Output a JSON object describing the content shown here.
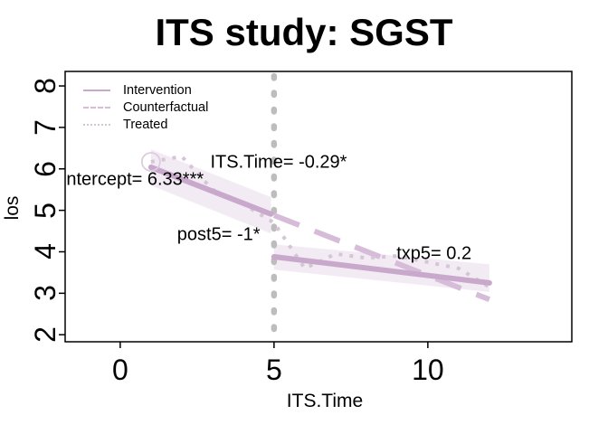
{
  "title": "ITS study: SGST",
  "legend": {
    "items": [
      {
        "label": "Intervention",
        "style": "solid",
        "series": "intervention"
      },
      {
        "label": "Counterfactual",
        "style": "dashed",
        "series": "counterfactual"
      },
      {
        "label": "Treated",
        "style": "dotted",
        "series": "treated"
      }
    ]
  },
  "colors": {
    "intervention": "#C9A9CB",
    "counterfactual": "#D7BCD9",
    "treated": "#D5C6D7",
    "band": "#F3EBF4",
    "intervention_line": "#BDBDBD",
    "start_marker": "#DCCCDE",
    "axis": "#000000"
  },
  "chart_data": {
    "type": "line",
    "title": "ITS study: SGST",
    "xlabel": "ITS.Time",
    "ylabel": "los",
    "xlim": [
      -1.79,
      14.68
    ],
    "ylim": [
      1.83,
      8.35
    ],
    "x_ticks": [
      0,
      5,
      10
    ],
    "y_ticks": [
      2,
      3,
      4,
      5,
      6,
      7,
      8
    ],
    "grid": false,
    "legend_position": "top-left",
    "intervention_x": 5,
    "series": [
      {
        "id": "intervention-pre",
        "name": "Intervention (pre-period fit)",
        "style": "solid",
        "x": [
          1,
          4.9
        ],
        "y": [
          6.04,
          4.91
        ]
      },
      {
        "id": "intervention-post",
        "name": "Intervention (post-period fit)",
        "style": "solid",
        "x": [
          5,
          12
        ],
        "y": [
          3.88,
          3.25
        ]
      },
      {
        "id": "counterfactual",
        "name": "Counterfactual",
        "style": "dashed",
        "x": [
          5,
          12
        ],
        "y": [
          4.88,
          2.85
        ]
      },
      {
        "id": "treated",
        "name": "Treated (observed)",
        "style": "dotted",
        "x": [
          1,
          2,
          3,
          4,
          5,
          6,
          7,
          8,
          9,
          10,
          11,
          12
        ],
        "y": [
          6.17,
          6.3,
          5.5,
          5.15,
          4.7,
          3.6,
          3.95,
          3.85,
          3.9,
          3.75,
          3.6,
          3.15
        ]
      }
    ],
    "bands": [
      {
        "id": "band-pre",
        "x": [
          1,
          4.9
        ],
        "upper": [
          6.47,
          5.32
        ],
        "lower": [
          5.6,
          4.44
        ]
      },
      {
        "id": "band-post",
        "x": [
          5,
          12
        ],
        "upper": [
          4.18,
          3.7
        ],
        "lower": [
          3.57,
          3.03
        ]
      }
    ],
    "start_marker": {
      "x": 1,
      "y": 6.17
    },
    "annotations": [
      {
        "text": "ntercept= 6.33***",
        "x": -1.75,
        "y": 5.73,
        "align": "left"
      },
      {
        "text": "ITS.Time= -0.29*",
        "x": 5.15,
        "y": 6.15,
        "align": "center"
      },
      {
        "text": "post5= -1*",
        "x": 3.2,
        "y": 4.4,
        "align": "center"
      },
      {
        "text": "txp5= 0.2",
        "x": 10.2,
        "y": 3.95,
        "align": "center"
      }
    ]
  }
}
